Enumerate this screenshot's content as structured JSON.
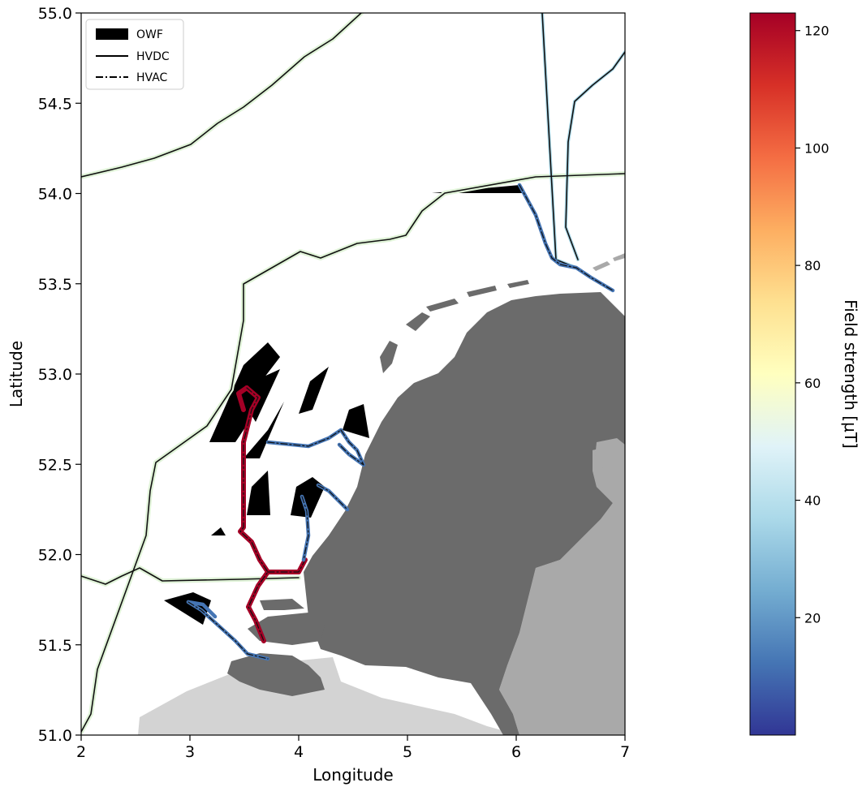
{
  "axes": {
    "xlabel": "Longitude",
    "ylabel": "Latitude",
    "xlim": [
      2,
      7
    ],
    "ylim": [
      51.0,
      55.0
    ],
    "xticks": [
      2,
      3,
      4,
      5,
      6,
      7
    ],
    "xtick_labels": [
      "2",
      "3",
      "4",
      "5",
      "6",
      "7"
    ],
    "yticks": [
      51.0,
      51.5,
      52.0,
      52.5,
      53.0,
      53.5,
      54.0,
      54.5,
      55.0
    ],
    "ytick_labels": [
      "51.0",
      "51.5",
      "52.0",
      "52.5",
      "53.0",
      "53.5",
      "54.0",
      "54.5",
      "55.0"
    ]
  },
  "legend": {
    "placement": "upper-left",
    "items": [
      {
        "label": "OWF",
        "style": "filled-patch"
      },
      {
        "label": "HVDC",
        "style": "solid"
      },
      {
        "label": "HVAC",
        "style": "dash-dot"
      }
    ]
  },
  "colorbar": {
    "label": "Field strength [μT]",
    "colormap": "RdYlBu_r",
    "range": [
      0,
      123
    ],
    "ticks": [
      20,
      40,
      60,
      80,
      100,
      120
    ],
    "tick_labels": [
      "20",
      "40",
      "60",
      "80",
      "100",
      "120"
    ]
  },
  "colors": {
    "netherlands_land": "#6b6b6b",
    "neighbor_land": "#a9a9a9",
    "belgium_land": "#d3d3d3",
    "owf": "#000000",
    "cable_high": "#a50026",
    "cable_low": "#4575b4",
    "cable_mid": "#abd9e9",
    "cable_pale": "#e0f3d8"
  },
  "map_features": {
    "owf_count": 9,
    "cables": [
      {
        "name": "HVDC",
        "type": "HVDC",
        "field_level": "low"
      },
      {
        "name": "HVAC",
        "type": "HVAC",
        "field_level": "high"
      }
    ]
  }
}
